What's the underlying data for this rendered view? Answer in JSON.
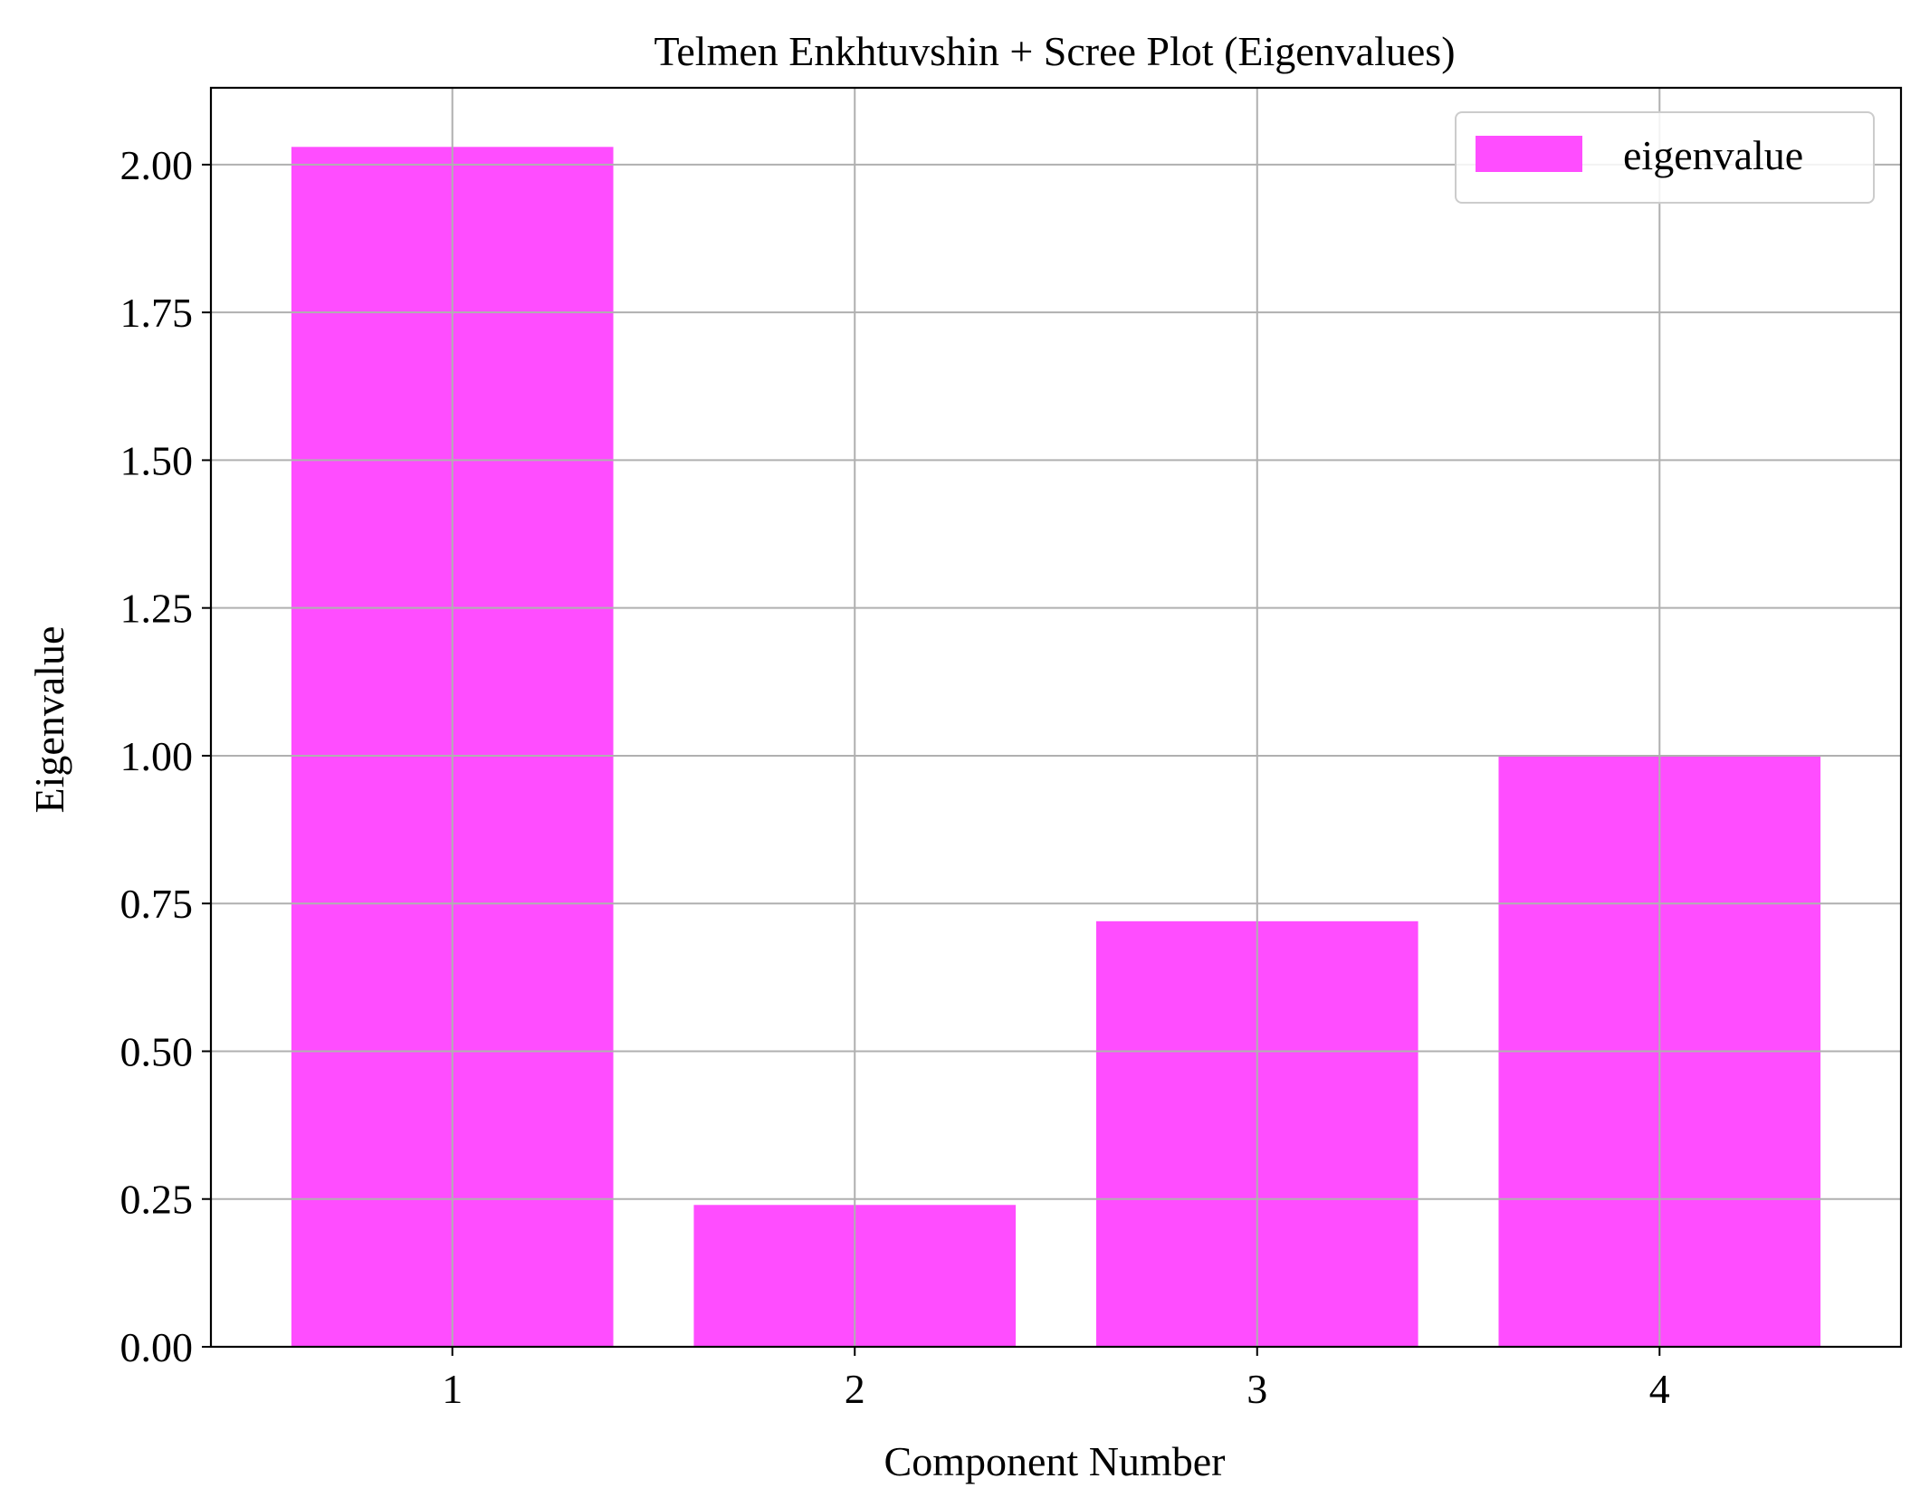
{
  "chart_data": {
    "type": "bar",
    "title": "Telmen Enkhtuvshin + Scree Plot (Eigenvalues)",
    "xlabel": "Component Number",
    "ylabel": "Eigenvalue",
    "categories": [
      "1",
      "2",
      "3",
      "4"
    ],
    "x": [
      1,
      2,
      3,
      4
    ],
    "series": [
      {
        "name": "eigenvalue",
        "values": [
          2.03,
          0.24,
          0.72,
          1.0
        ],
        "color": "#ff4dff"
      }
    ],
    "xlim": [
      0.4,
      4.6
    ],
    "ylim": [
      0,
      2.13
    ],
    "yticks": [
      0,
      0.25,
      0.5,
      0.75,
      1.0,
      1.25,
      1.5,
      1.75,
      2.0
    ],
    "ytick_labels": [
      "0.00",
      "0.25",
      "0.50",
      "0.75",
      "1.00",
      "1.25",
      "1.50",
      "1.75",
      "2.00"
    ],
    "grid": true,
    "legend_position": "top-right"
  }
}
